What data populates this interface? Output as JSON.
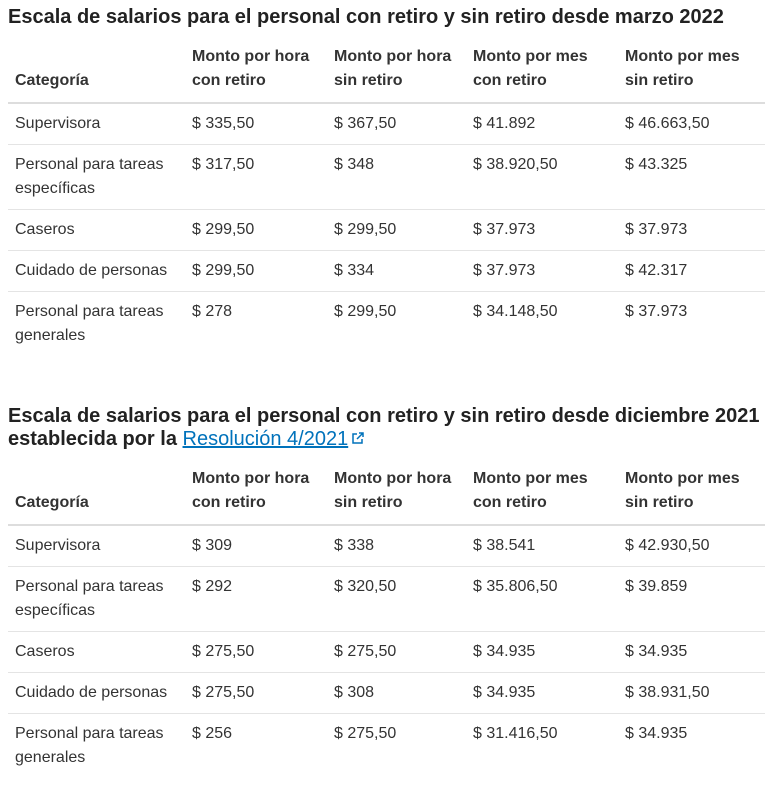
{
  "sections": [
    {
      "title": "Escala de salarios para el personal con retiro y sin retiro desde marzo 2022",
      "table": {
        "headers": [
          "Categoría",
          "Monto por hora con retiro",
          "Monto por hora sin retiro",
          "Monto por mes con retiro",
          "Monto por mes sin retiro"
        ],
        "rows": [
          [
            "Supervisora",
            "$ 335,50",
            "$ 367,50",
            "$ 41.892",
            "$ 46.663,50"
          ],
          [
            "Personal para tareas específicas",
            "$ 317,50",
            "$ 348",
            "$ 38.920,50",
            "$ 43.325"
          ],
          [
            "Caseros",
            "$ 299,50",
            "$ 299,50",
            "$ 37.973",
            "$ 37.973"
          ],
          [
            "Cuidado de personas",
            "$ 299,50",
            "$ 334",
            "$ 37.973",
            "$ 42.317"
          ],
          [
            "Personal para tareas generales",
            "$ 278",
            "$ 299,50",
            "$ 34.148,50",
            "$ 37.973"
          ]
        ]
      }
    },
    {
      "title": "Escala de salarios para el personal con retiro y sin retiro desde diciembre 2021 establecida por la",
      "link": "Resolución 4/2021",
      "table": {
        "headers": [
          "Categoría",
          "Monto por hora con retiro",
          "Monto por hora sin retiro",
          "Monto por mes con retiro",
          "Monto por mes sin retiro"
        ],
        "rows": [
          [
            "Supervisora",
            "$ 309",
            "$ 338",
            "$ 38.541",
            "$ 42.930,50"
          ],
          [
            "Personal para tareas específicas",
            "$ 292",
            "$ 320,50",
            "$ 35.806,50",
            "$ 39.859"
          ],
          [
            "Caseros",
            "$ 275,50",
            "$ 275,50",
            "$ 34.935",
            "$ 34.935"
          ],
          [
            "Cuidado de personas",
            "$ 275,50",
            "$ 308",
            "$ 34.935",
            "$ 38.931,50"
          ],
          [
            "Personal para tareas generales",
            "$ 256",
            "$ 275,50",
            "$ 31.416,50",
            "$ 34.935"
          ]
        ]
      }
    }
  ]
}
